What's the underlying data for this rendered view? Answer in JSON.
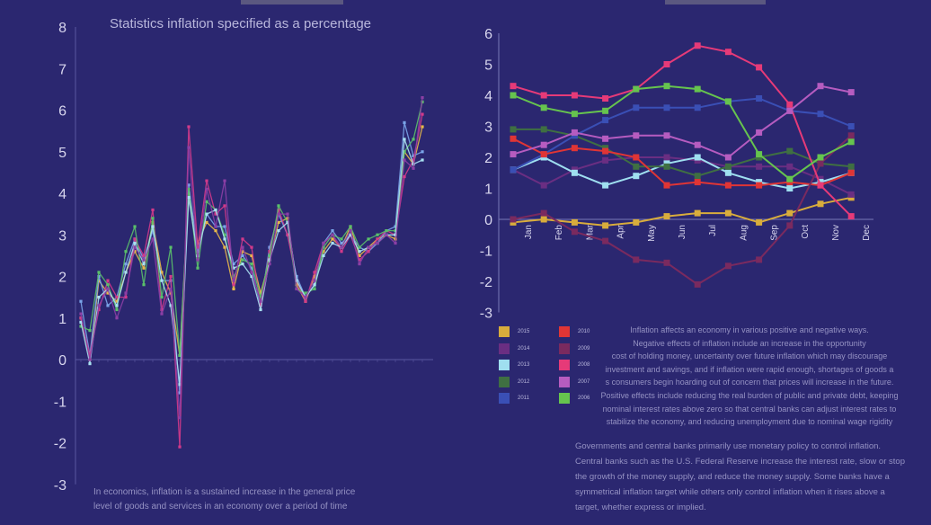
{
  "left_chart": {
    "title": "Statistics inflation specified as a percentage",
    "chart_data": {
      "type": "line",
      "ylim": [
        -3,
        8
      ],
      "yticks": [
        -3,
        -2,
        -1,
        0,
        1,
        2,
        3,
        4,
        5,
        6,
        7,
        8
      ],
      "note": "Yearly inflation rates for many countries; x tick labels are too small to be legible",
      "series": [
        {
          "color": "#e8b84a",
          "values": [
            1.0,
            0.0,
            1.9,
            1.6,
            1.4,
            2.1,
            2.6,
            2.2,
            3.3,
            2.1,
            1.6,
            0.1,
            4.0,
            2.8,
            3.3,
            3.1,
            2.7,
            1.7,
            2.6,
            2.5,
            1.6,
            2.4,
            3.3,
            3.4,
            1.8,
            1.4,
            2.0,
            2.6,
            2.9,
            2.7,
            3.2,
            2.5,
            2.7,
            2.9,
            3.0,
            2.9,
            5.0,
            4.7,
            5.6
          ]
        },
        {
          "color": "#7aa4e8",
          "values": [
            1.4,
            0.1,
            2.0,
            1.3,
            1.5,
            2.3,
            2.9,
            2.4,
            3.1,
            1.9,
            1.9,
            -0.8,
            4.2,
            2.6,
            3.5,
            3.2,
            3.2,
            2.3,
            2.5,
            2.2,
            1.3,
            2.7,
            3.5,
            3.0,
            2.0,
            1.5,
            1.8,
            2.8,
            3.1,
            2.8,
            3.0,
            2.7,
            2.6,
            2.8,
            3.1,
            3.2,
            5.7,
            4.9,
            5.0
          ]
        },
        {
          "color": "#d33a8a",
          "values": [
            1.0,
            0.1,
            1.2,
            1.9,
            1.5,
            1.5,
            2.9,
            2.5,
            3.6,
            1.2,
            2.0,
            -2.1,
            5.6,
            2.7,
            4.3,
            3.5,
            3.7,
            1.8,
            2.9,
            2.7,
            1.3,
            2.6,
            3.6,
            3.0,
            1.9,
            1.4,
            2.1,
            2.8,
            3.0,
            2.6,
            3.0,
            2.4,
            2.6,
            2.9,
            3.1,
            3.0,
            4.4,
            4.8,
            5.9
          ]
        },
        {
          "color": "#5ac06a",
          "values": [
            0.8,
            0.7,
            2.1,
            1.8,
            1.2,
            2.6,
            3.2,
            1.8,
            3.4,
            1.5,
            2.7,
            0.1,
            4.1,
            2.2,
            3.8,
            3.6,
            3.0,
            2.0,
            2.4,
            2.3,
            1.5,
            2.5,
            3.7,
            3.3,
            1.7,
            1.6,
            1.7,
            2.7,
            3.0,
            2.9,
            3.2,
            2.7,
            2.9,
            3.0,
            3.1,
            3.1,
            5.0,
            5.3,
            6.2
          ]
        },
        {
          "color": "#a8e0f0",
          "values": [
            0.9,
            -0.1,
            1.5,
            1.7,
            1.3,
            2.1,
            2.8,
            2.3,
            3.2,
            1.9,
            1.3,
            -0.6,
            3.9,
            2.5,
            3.5,
            3.6,
            2.9,
            2.2,
            2.3,
            2.0,
            1.2,
            2.4,
            3.1,
            3.3,
            1.9,
            1.5,
            1.8,
            2.5,
            2.8,
            2.7,
            3.0,
            2.6,
            2.7,
            2.8,
            3.0,
            3.0,
            5.3,
            4.7,
            4.8
          ]
        },
        {
          "color": "#8c3fa5",
          "values": [
            1.1,
            0.0,
            1.3,
            1.7,
            1.0,
            1.6,
            2.7,
            2.4,
            2.9,
            1.1,
            1.7,
            -1.4,
            5.1,
            2.4,
            4.1,
            3.2,
            4.3,
            1.9,
            2.7,
            2.1,
            1.4,
            2.3,
            3.5,
            3.5,
            1.7,
            1.5,
            1.9,
            2.8,
            3.0,
            2.7,
            3.1,
            2.3,
            2.7,
            2.8,
            3.0,
            2.8,
            4.8,
            4.6,
            6.3
          ]
        }
      ]
    }
  },
  "right_chart": {
    "chart_data": {
      "type": "line",
      "ylim": [
        -3,
        6
      ],
      "yticks": [
        -3,
        -2,
        -1,
        0,
        1,
        2,
        3,
        4,
        5,
        6
      ],
      "categories": [
        "Jan",
        "Feb",
        "Mar",
        "Apr",
        "May",
        "Jun",
        "Jul",
        "Aug",
        "Sep",
        "Oct",
        "Nov",
        "Dec"
      ],
      "series": [
        {
          "name": "2015",
          "color": "#d8ac3c",
          "values": [
            -0.1,
            0.0,
            -0.1,
            -0.2,
            -0.1,
            0.1,
            0.2,
            0.2,
            -0.1,
            0.2,
            0.5,
            0.7
          ]
        },
        {
          "name": "2014",
          "color": "#6a2e82",
          "values": [
            1.6,
            1.1,
            1.6,
            1.9,
            2.0,
            2.0,
            1.9,
            1.7,
            1.7,
            1.7,
            1.3,
            0.8
          ]
        },
        {
          "name": "2013",
          "color": "#9fdff0",
          "values": [
            1.6,
            2.0,
            1.5,
            1.1,
            1.4,
            1.8,
            2.0,
            1.5,
            1.2,
            1.0,
            1.2,
            1.5
          ]
        },
        {
          "name": "2012",
          "color": "#3f6f42",
          "values": [
            2.9,
            2.9,
            2.7,
            2.3,
            1.7,
            1.7,
            1.4,
            1.7,
            2.0,
            2.2,
            1.8,
            1.7
          ]
        },
        {
          "name": "2011",
          "color": "#3a4fb5",
          "values": [
            1.6,
            2.1,
            2.7,
            3.2,
            3.6,
            3.6,
            3.6,
            3.8,
            3.9,
            3.5,
            3.4,
            3.0
          ]
        },
        {
          "name": "2010",
          "color": "#e03535",
          "values": [
            2.6,
            2.1,
            2.3,
            2.2,
            2.0,
            1.1,
            1.2,
            1.1,
            1.1,
            1.2,
            1.1,
            1.5
          ]
        },
        {
          "name": "2009",
          "color": "#7a2a5f",
          "values": [
            0.0,
            0.2,
            -0.4,
            -0.7,
            -1.3,
            -1.4,
            -2.1,
            -1.5,
            -1.3,
            -0.2,
            1.8,
            2.7
          ]
        },
        {
          "name": "2008",
          "color": "#e63a78",
          "values": [
            4.3,
            4.0,
            4.0,
            3.9,
            4.2,
            5.0,
            5.6,
            5.4,
            4.9,
            3.7,
            1.1,
            0.1
          ]
        },
        {
          "name": "2007",
          "color": "#b65cc0",
          "values": [
            2.1,
            2.4,
            2.8,
            2.6,
            2.7,
            2.7,
            2.4,
            2.0,
            2.8,
            3.5,
            4.3,
            4.1
          ]
        },
        {
          "name": "2006",
          "color": "#66c44e",
          "values": [
            4.0,
            3.6,
            3.4,
            3.5,
            4.2,
            4.3,
            4.2,
            3.8,
            2.1,
            1.3,
            2.0,
            2.5
          ]
        }
      ]
    }
  },
  "notes": {
    "effects": [
      "Inflation affects an economy in various positive and negative ways.",
      "Negative effects of inflation include an increase in the opportunity",
      "cost of holding money, uncertainty over future inflation which may discourage",
      "investment and savings, and if inflation were rapid enough, shortages of goods a",
      "s consumers begin  hoarding out of concern that prices will increase in the future.",
      "Positive effects include reducing the real burden of public and private debt, keeping",
      "nominal interest rates above  zero so that central banks can adjust interest rates to",
      "stabilize the economy, and reducing unemployment due to nominal wage rigidity"
    ],
    "policy": [
      "Governments and central banks primarily use monetary policy to control inflation.",
      "Central banks such as the U.S. Federal Reserve increase the interest rate, slow or stop",
      "the growth  of the money supply, and reduce the money supply. Some banks have a",
      "symmetrical inflation target while others only control inflation when it rises above  a",
      "target, whether express or implied."
    ],
    "definition": [
      "In economics, inflation is a sustained increase in the general price",
      "level of goods and services in an economy over a period of time"
    ]
  }
}
